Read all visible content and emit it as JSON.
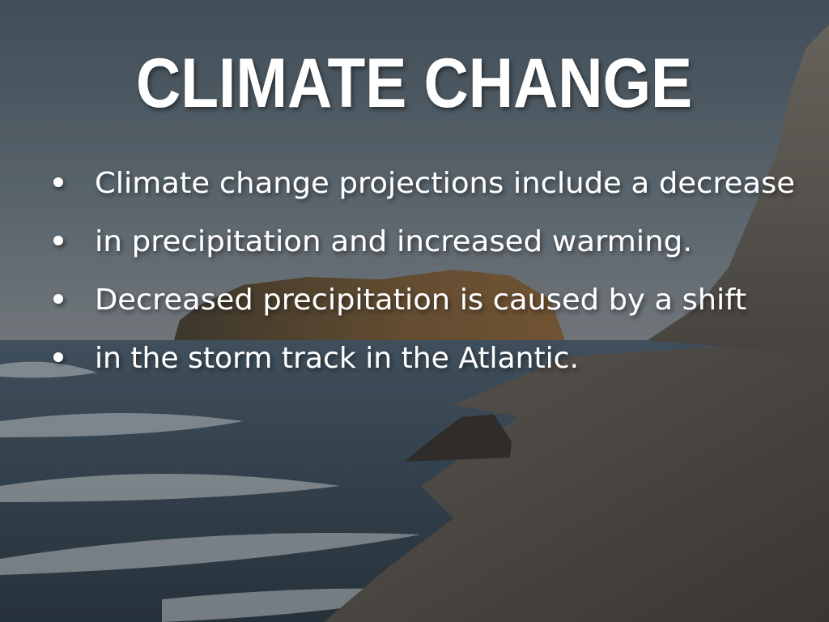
{
  "slide": {
    "title": "CLIMATE CHANGE",
    "bullets": [
      "Climate change projections include a decrease",
      "in precipitation and increased warming.",
      "Decreased precipitation is caused by a shift",
      "in the storm track in the Atlantic."
    ]
  }
}
